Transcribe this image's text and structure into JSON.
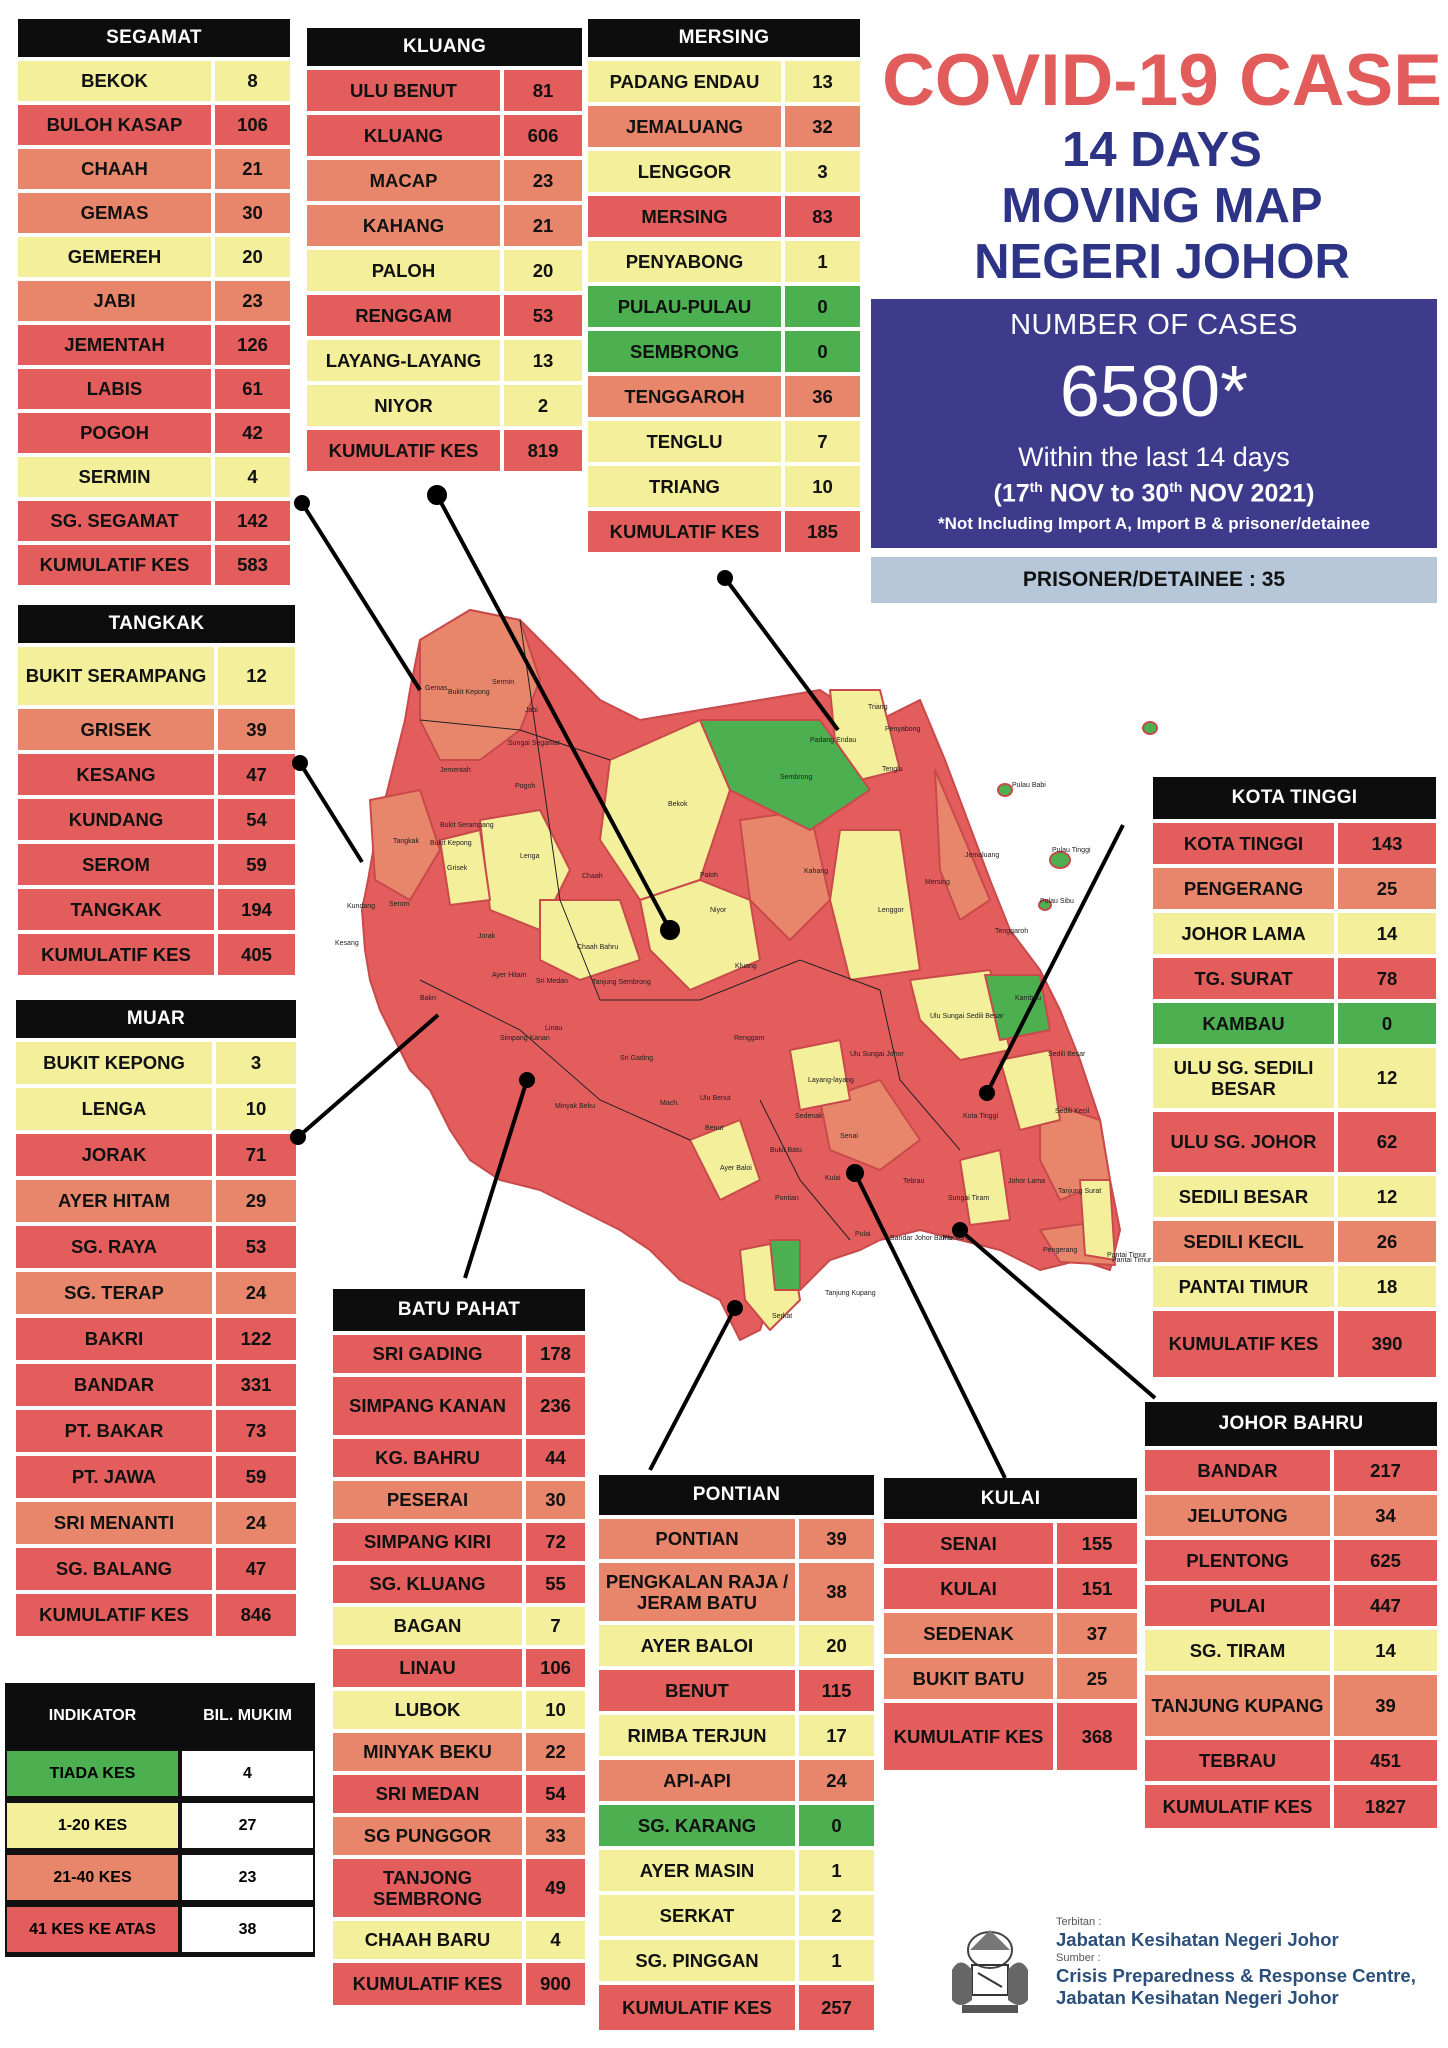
{
  "title": {
    "main": "COVID-19 CASE",
    "line2": "14 DAYS",
    "line3": "MOVING MAP",
    "line4": "NEGERI JOHOR"
  },
  "summary": {
    "label": "NUMBER OF CASES",
    "number": "6580*",
    "within": "Within the last 14 days",
    "date_start_day": "17",
    "date_start_rest": " NOV to 30",
    "date_end_rest": " NOV 2021)",
    "date_open": "(",
    "ordinal": "th",
    "note": "*Not Including Import A, Import B & prisoner/detainee",
    "prisoner": "PRISONER/DETAINEE : 35"
  },
  "colors": {
    "green": "#4caf50",
    "yellow": "#f3ef9b",
    "salmon": "#e8866b",
    "red": "#e35d5d",
    "header": "#0d0d0d",
    "title_red": "#e25c5c",
    "title_blue": "#2d3486",
    "panel_blue": "#3e3a8c",
    "prisoner_bg": "#b7c7da"
  },
  "districts": [
    {
      "key": "segamat",
      "name": "SEGAMAT",
      "rows": [
        {
          "n": "BEKOK",
          "v": "8"
        },
        {
          "n": "BULOH KASAP",
          "v": "106"
        },
        {
          "n": "CHAAH",
          "v": "21"
        },
        {
          "n": "GEMAS",
          "v": "30"
        },
        {
          "n": "GEMEREH",
          "v": "20"
        },
        {
          "n": "JABI",
          "v": "23"
        },
        {
          "n": "JEMENTAH",
          "v": "126"
        },
        {
          "n": "LABIS",
          "v": "61"
        },
        {
          "n": "POGOH",
          "v": "42"
        },
        {
          "n": "SERMIN",
          "v": "4"
        },
        {
          "n": "SG. SEGAMAT",
          "v": "142"
        }
      ],
      "total_label": "KUMULATIF KES",
      "total": "583"
    },
    {
      "key": "kluang",
      "name": "KLUANG",
      "rows": [
        {
          "n": "ULU BENUT",
          "v": "81"
        },
        {
          "n": "KLUANG",
          "v": "606"
        },
        {
          "n": "MACAP",
          "v": "23"
        },
        {
          "n": "KAHANG",
          "v": "21"
        },
        {
          "n": "PALOH",
          "v": "20"
        },
        {
          "n": "RENGGAM",
          "v": "53"
        },
        {
          "n": "LAYANG-LAYANG",
          "v": "13"
        },
        {
          "n": "NIYOR",
          "v": "2"
        }
      ],
      "total_label": "KUMULATIF KES",
      "total": "819"
    },
    {
      "key": "mersing",
      "name": "MERSING",
      "rows": [
        {
          "n": "PADANG ENDAU",
          "v": "13"
        },
        {
          "n": "JEMALUANG",
          "v": "32"
        },
        {
          "n": "LENGGOR",
          "v": "3"
        },
        {
          "n": "MERSING",
          "v": "83"
        },
        {
          "n": "PENYABONG",
          "v": "1"
        },
        {
          "n": "PULAU-PULAU",
          "v": "0"
        },
        {
          "n": "SEMBRONG",
          "v": "0"
        },
        {
          "n": "TENGGAROH",
          "v": "36"
        },
        {
          "n": "TENGLU",
          "v": "7"
        },
        {
          "n": "TRIANG",
          "v": "10"
        }
      ],
      "total_label": "KUMULATIF KES",
      "total": "185"
    },
    {
      "key": "tangkak",
      "name": "TANGKAK",
      "rows": [
        {
          "n": "BUKIT SERAMPANG",
          "v": "12"
        },
        {
          "n": "GRISEK",
          "v": "39"
        },
        {
          "n": "KESANG",
          "v": "47"
        },
        {
          "n": "KUNDANG",
          "v": "54"
        },
        {
          "n": "SEROM",
          "v": "59"
        },
        {
          "n": "TANGKAK",
          "v": "194"
        }
      ],
      "total_label": "KUMULATIF KES",
      "total": "405"
    },
    {
      "key": "muar",
      "name": "MUAR",
      "rows": [
        {
          "n": "BUKIT KEPONG",
          "v": "3"
        },
        {
          "n": "LENGA",
          "v": "10"
        },
        {
          "n": "JORAK",
          "v": "71"
        },
        {
          "n": "AYER HITAM",
          "v": "29"
        },
        {
          "n": "SG. RAYA",
          "v": "53"
        },
        {
          "n": "SG. TERAP",
          "v": "24"
        },
        {
          "n": "BAKRI",
          "v": "122"
        },
        {
          "n": "BANDAR",
          "v": "331"
        },
        {
          "n": "PT. BAKAR",
          "v": "73"
        },
        {
          "n": "PT. JAWA",
          "v": "59"
        },
        {
          "n": "SRI MENANTI",
          "v": "24"
        },
        {
          "n": "SG. BALANG",
          "v": "47"
        }
      ],
      "total_label": "KUMULATIF KES",
      "total": "846"
    },
    {
      "key": "kota_tinggi",
      "name": "KOTA TINGGI",
      "rows": [
        {
          "n": "KOTA TINGGI",
          "v": "143"
        },
        {
          "n": "PENGERANG",
          "v": "25"
        },
        {
          "n": "JOHOR LAMA",
          "v": "14"
        },
        {
          "n": "TG. SURAT",
          "v": "78"
        },
        {
          "n": "KAMBAU",
          "v": "0"
        },
        {
          "n": "ULU SG. SEDILI BESAR",
          "v": "12"
        },
        {
          "n": "ULU  SG. JOHOR",
          "v": "62"
        },
        {
          "n": "SEDILI BESAR",
          "v": "12"
        },
        {
          "n": "SEDILI KECIL",
          "v": "26"
        },
        {
          "n": "PANTAI TIMUR",
          "v": "18"
        }
      ],
      "total_label": "KUMULATIF KES",
      "total": "390"
    },
    {
      "key": "batu_pahat",
      "name": "BATU PAHAT",
      "rows": [
        {
          "n": "SRI GADING",
          "v": "178"
        },
        {
          "n": "SIMPANG KANAN",
          "v": "236"
        },
        {
          "n": "KG. BAHRU",
          "v": "44"
        },
        {
          "n": "PESERAI",
          "v": "30"
        },
        {
          "n": "SIMPANG KIRI",
          "v": "72"
        },
        {
          "n": "SG. KLUANG",
          "v": "55"
        },
        {
          "n": "BAGAN",
          "v": "7"
        },
        {
          "n": "LINAU",
          "v": "106"
        },
        {
          "n": "LUBOK",
          "v": "10"
        },
        {
          "n": "MINYAK BEKU",
          "v": "22"
        },
        {
          "n": "SRI MEDAN",
          "v": "54"
        },
        {
          "n": "SG PUNGGOR",
          "v": "33"
        },
        {
          "n": "TANJONG SEMBRONG",
          "v": "49"
        },
        {
          "n": "CHAAH BARU",
          "v": "4"
        }
      ],
      "total_label": "KUMULATIF KES",
      "total": "900"
    },
    {
      "key": "pontian",
      "name": "PONTIAN",
      "rows": [
        {
          "n": "PONTIAN",
          "v": "39"
        },
        {
          "n": "PENGKALAN RAJA / JERAM BATU",
          "v": "38"
        },
        {
          "n": "AYER BALOI",
          "v": "20"
        },
        {
          "n": "BENUT",
          "v": "115"
        },
        {
          "n": "RIMBA TERJUN",
          "v": "17"
        },
        {
          "n": "API-API",
          "v": "24"
        },
        {
          "n": "SG. KARANG",
          "v": "0"
        },
        {
          "n": "AYER MASIN",
          "v": "1"
        },
        {
          "n": "SERKAT",
          "v": "2"
        },
        {
          "n": "SG. PINGGAN",
          "v": "1"
        }
      ],
      "total_label": "KUMULATIF KES",
      "total": "257"
    },
    {
      "key": "kulai",
      "name": "KULAI",
      "rows": [
        {
          "n": "SENAI",
          "v": "155"
        },
        {
          "n": "KULAI",
          "v": "151"
        },
        {
          "n": "SEDENAK",
          "v": "37"
        },
        {
          "n": "BUKIT BATU",
          "v": "25"
        }
      ],
      "total_label": "KUMULATIF KES",
      "total": "368"
    },
    {
      "key": "johor_bahru",
      "name": "JOHOR BAHRU",
      "rows": [
        {
          "n": "BANDAR",
          "v": "217"
        },
        {
          "n": "JELUTONG",
          "v": "34"
        },
        {
          "n": "PLENTONG",
          "v": "625"
        },
        {
          "n": "PULAI",
          "v": "447"
        },
        {
          "n": "SG. TIRAM",
          "v": "14"
        },
        {
          "n": "TANJUNG KUPANG",
          "v": "39"
        },
        {
          "n": "TEBRAU",
          "v": "451"
        }
      ],
      "total_label": "KUMULATIF KES",
      "total": "1827"
    }
  ],
  "legend": {
    "col1": "INDIKATOR",
    "col2": "BIL. MUKIM",
    "rows": [
      {
        "label": "TIADA KES",
        "count": "4",
        "color": "#4caf50"
      },
      {
        "label": "1-20 KES",
        "count": "27",
        "color": "#f3ef9b"
      },
      {
        "label": "21-40 KES",
        "count": "23",
        "color": "#e8866b"
      },
      {
        "label": "41 KES KE ATAS",
        "count": "38",
        "color": "#e35d5d"
      }
    ]
  },
  "map_labels": [
    "Gemas",
    "Bukit Kepong",
    "Sermin",
    "Jabi",
    "Sungai Segamat",
    "Jementah",
    "Pogoh",
    "Bukit Serampang",
    "Bukit Kepong",
    "Tangkak",
    "Grisek",
    "Lenga",
    "Chaah",
    "Bekok",
    "Sembrong",
    "Padang Endau",
    "Triang",
    "Penyabong",
    "Tenglu",
    "Pulau Babi",
    "Pulau Tinggi",
    "Pulau Sibu",
    "Kahang",
    "Paloh",
    "Niyor",
    "Kluang",
    "Mersing",
    "Jemaluang",
    "Lenggor",
    "Tenggaroh",
    "Kundang",
    "Serom",
    "Kesang",
    "Jorak",
    "Ayer Hitam",
    "Sri Medan",
    "Chaah Bahru",
    "Tanjung Sembrong",
    "Renggam",
    "Ulu Sungai Sedili Besar",
    "Kambau",
    "Sedili Besar",
    "Sedili Kecil",
    "Kota Tinggi",
    "Johor Lama",
    "Tanjung Surat",
    "Pengerang",
    "Pantai Timur",
    "Ulu Sungai Johor",
    "Layang-layang",
    "Sedenak",
    "Senai",
    "Kulai",
    "Tebrau",
    "Plentong",
    "Bakri",
    "Simpang Kanan",
    "Linau",
    "Sri Gading",
    "Minyak Beku",
    "Mach.",
    "Ulu Benut",
    "Benut",
    "Ayer Baloi",
    "Bukit Batu",
    "Pontian",
    "Pulai",
    "Serkat",
    "Tanjung Kupang",
    "Sungai Tiram",
    "Bandar Johor Bahru",
    "Pantai Timur"
  ],
  "footer": {
    "published_label": "Terbitan :",
    "publisher": "Jabatan Kesihatan Negeri Johor",
    "source_label": "Sumber :",
    "source_line1": "Crisis Preparedness & Response Centre,",
    "source_line2": "Jabatan Kesihatan Negeri Johor"
  }
}
